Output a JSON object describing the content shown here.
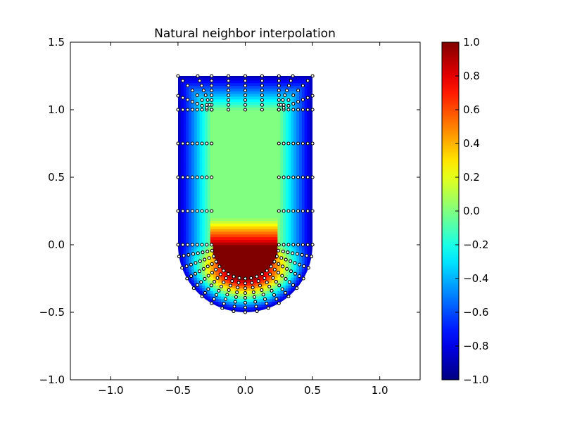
{
  "chart_data": {
    "type": "heatmap",
    "title": "Natural neighbor interpolation",
    "xlabel": "",
    "ylabel": "",
    "xlim": [
      -1.3,
      1.3
    ],
    "ylim": [
      -1.0,
      1.5
    ],
    "xticks": [
      -1.0,
      -0.5,
      0.0,
      0.5,
      1.0
    ],
    "yticks": [
      -1.0,
      -0.5,
      0.0,
      0.5,
      1.0,
      1.5
    ],
    "xtick_labels": [
      "−1.0",
      "−0.5",
      "0.0",
      "0.5",
      "1.0"
    ],
    "ytick_labels": [
      "−1.0",
      "−0.5",
      "0.0",
      "0.5",
      "1.0",
      "1.5"
    ],
    "colormap": "jet",
    "colorbar": {
      "range": [
        -1.0,
        1.0
      ],
      "ticks": [
        -1.0,
        -0.8,
        -0.6,
        -0.4,
        -0.2,
        0.0,
        0.2,
        0.4,
        0.6,
        0.8,
        1.0
      ],
      "tick_labels": [
        "−1.0",
        "−0.8",
        "−0.6",
        "−0.4",
        "−0.2",
        "0.0",
        "0.2",
        "0.4",
        "0.6",
        "0.8",
        "1.0"
      ]
    },
    "domain_shape": {
      "outer_half_width": 0.5,
      "top_y": 1.25,
      "bottom_arc_center": [
        0.0,
        0.0
      ],
      "outer_radius": 0.5,
      "inner_channel_half_width": 0.25,
      "inner_top_y": 1.0,
      "inner_radius": 0.25
    },
    "field_values": {
      "inner_plateau": 0.0,
      "outer_wall": -0.9,
      "inner_arc_max": 1.0
    },
    "grid": false
  }
}
